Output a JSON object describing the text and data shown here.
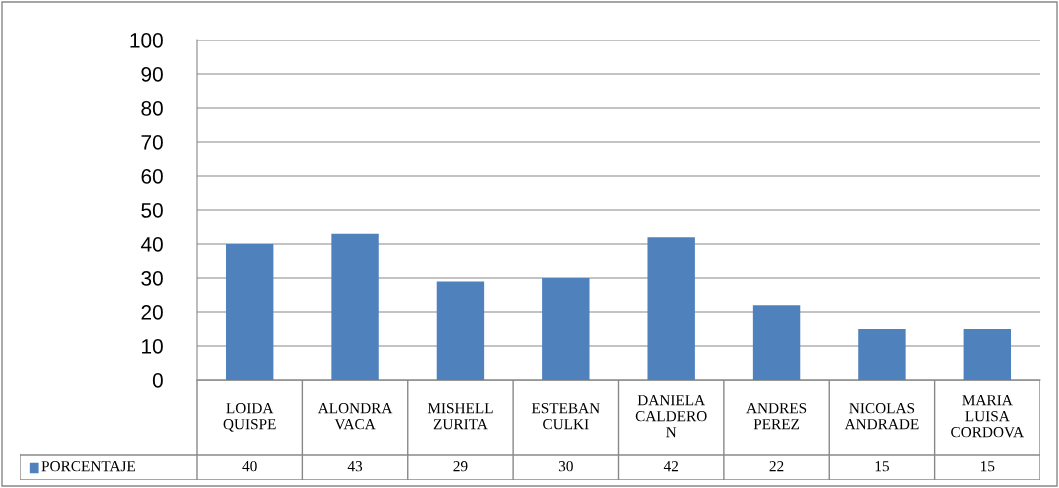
{
  "chart_data": {
    "type": "bar",
    "categories": [
      "LOIDA\nQUISPE",
      "ALONDRA\nVACA",
      "MISHELL\nZURITA",
      "ESTEBAN\nCULKI",
      "DANIELA\nCALDERO\nN",
      "ANDRES\nPEREZ",
      "NICOLAS\nANDRADE",
      "MARIA\nLUISA\nCORDOVA"
    ],
    "series": [
      {
        "name": "PORCENTAJE",
        "color": "#4f81bd",
        "values": [
          40,
          43,
          29,
          30,
          42,
          22,
          15,
          15
        ]
      }
    ],
    "ylim": [
      0,
      100
    ],
    "yticks": [
      0,
      10,
      20,
      30,
      40,
      50,
      60,
      70,
      80,
      90,
      100
    ],
    "grid": "y",
    "data_labels": true,
    "legend": "bottom"
  }
}
